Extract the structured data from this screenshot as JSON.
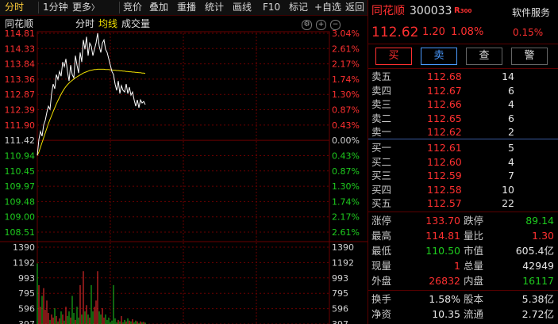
{
  "toolbar": {
    "items": [
      "分时",
      "1分钟",
      "更多",
      "竞价",
      "叠加",
      "重播",
      "统计",
      "画线",
      "F10",
      "标记",
      "+自选",
      "返回"
    ],
    "more_suffix": "〉"
  },
  "chart_header": {
    "stock_name": "同花顺",
    "mode": "分时",
    "avg_line": "均线",
    "volume": "成交量"
  },
  "chart_data": {
    "type": "line",
    "price_ticks": [
      "114.81",
      "114.33",
      "113.84",
      "113.36",
      "112.87",
      "112.39",
      "111.90",
      "111.42",
      "110.94",
      "110.45",
      "109.97",
      "109.48",
      "109.00",
      "108.51"
    ],
    "pct_ticks": [
      "3.04%",
      "2.61%",
      "2.17%",
      "1.74%",
      "1.30%",
      "0.87%",
      "0.43%",
      "0.00%",
      "0.43%",
      "0.87%",
      "1.30%",
      "1.74%",
      "2.17%",
      "2.61%"
    ],
    "volume_ticks": [
      "1390",
      "1192",
      "993",
      "795",
      "596",
      "397"
    ],
    "ylim": [
      108.51,
      114.81
    ],
    "prev_close": 111.42,
    "price": [
      110.94,
      111.45,
      111.7,
      111.55,
      111.9,
      112.05,
      112.3,
      112.5,
      112.4,
      112.9,
      113.2,
      113.05,
      113.5,
      113.35,
      113.6,
      113.45,
      113.9,
      113.75,
      114.0,
      113.6,
      113.3,
      113.8,
      113.5,
      113.4,
      114.1,
      113.8,
      113.55,
      114.2,
      113.9,
      114.6,
      114.3,
      114.7,
      114.1,
      114.5,
      114.4,
      114.1,
      114.3,
      114.5,
      114.81,
      114.4,
      114.2,
      114.5,
      114.6,
      114.3,
      114.2,
      114.0,
      113.8,
      113.6,
      113.5,
      113.2,
      113.0,
      113.3,
      112.9,
      113.15,
      113.0,
      112.95,
      113.2,
      112.9,
      113.1,
      112.85,
      112.95,
      112.7,
      112.5,
      112.7,
      112.45,
      112.7,
      112.6,
      112.65,
      112.55
    ],
    "avg": [
      110.94,
      111.05,
      111.2,
      111.35,
      111.5,
      111.65,
      111.8,
      111.95,
      112.08,
      112.2,
      112.33,
      112.45,
      112.57,
      112.68,
      112.78,
      112.88,
      112.97,
      113.05,
      113.12,
      113.18,
      113.23,
      113.28,
      113.32,
      113.36,
      113.4,
      113.43,
      113.46,
      113.49,
      113.52,
      113.55,
      113.57,
      113.59,
      113.61,
      113.63,
      113.64,
      113.65,
      113.66,
      113.66,
      113.67,
      113.67,
      113.67,
      113.67,
      113.67,
      113.66,
      113.66,
      113.66,
      113.65,
      113.65,
      113.64,
      113.64,
      113.63,
      113.63,
      113.62,
      113.62,
      113.61,
      113.61,
      113.6,
      113.6,
      113.59,
      113.59,
      113.58,
      113.58,
      113.57,
      113.57,
      113.56,
      113.56,
      113.55,
      113.55,
      113.54
    ],
    "volume_ylim": [
      397,
      1390
    ],
    "volume": [
      1180,
      900,
      620,
      760,
      860,
      580,
      700,
      540,
      450,
      520,
      480,
      600,
      500,
      430,
      470,
      560,
      520,
      440,
      620,
      500,
      560,
      480,
      760,
      540,
      450,
      620,
      480,
      900,
      520,
      1080,
      560,
      640,
      520,
      480,
      900,
      560,
      620,
      700,
      1080,
      560,
      520,
      600,
      480,
      520,
      450,
      480,
      420,
      440,
      900,
      470,
      420,
      450,
      430,
      500,
      420,
      450,
      430,
      470,
      440,
      430,
      460,
      420,
      440,
      430,
      410,
      430,
      420,
      425,
      415
    ],
    "volume_up": [
      false,
      true,
      true,
      false,
      true,
      true,
      true,
      true,
      false,
      true,
      true,
      false,
      true,
      false,
      true,
      false,
      true,
      false,
      true,
      false,
      false,
      true,
      false,
      false,
      true,
      false,
      false,
      true,
      false,
      true,
      false,
      true,
      false,
      true,
      false,
      false,
      true,
      true,
      true,
      false,
      false,
      true,
      true,
      false,
      false,
      false,
      false,
      false,
      false,
      false,
      false,
      true,
      false,
      true,
      false,
      false,
      true,
      false,
      true,
      false,
      true,
      false,
      false,
      true,
      false,
      true,
      false,
      true,
      false
    ]
  },
  "panel": {
    "name": "同花顺",
    "code": "300033",
    "tag": "R",
    "tag_sup": "300",
    "service": "软件服务",
    "price": "112.62",
    "change": "1.20",
    "change_pct": "1.08%",
    "sector_pct": "0.15%",
    "buttons": [
      "买",
      "卖",
      "查",
      "警"
    ],
    "asks": [
      {
        "label": "卖五",
        "price": "112.68",
        "vol": "14"
      },
      {
        "label": "卖四",
        "price": "112.67",
        "vol": "6"
      },
      {
        "label": "卖三",
        "price": "112.66",
        "vol": "4"
      },
      {
        "label": "卖二",
        "price": "112.65",
        "vol": "6"
      },
      {
        "label": "卖一",
        "price": "112.62",
        "vol": "2"
      }
    ],
    "bids": [
      {
        "label": "买一",
        "price": "112.61",
        "vol": "5"
      },
      {
        "label": "买二",
        "price": "112.60",
        "vol": "4"
      },
      {
        "label": "买三",
        "price": "112.59",
        "vol": "7"
      },
      {
        "label": "买四",
        "price": "112.58",
        "vol": "10"
      },
      {
        "label": "买五",
        "price": "112.57",
        "vol": "22"
      }
    ],
    "stats": [
      {
        "k1": "涨停",
        "v1": "133.70",
        "c1": "red",
        "k2": "跌停",
        "v2": "89.14",
        "c2": "green"
      },
      {
        "k1": "最高",
        "v1": "114.81",
        "c1": "red",
        "k2": "量比",
        "v2": "1.30",
        "c2": "red"
      },
      {
        "k1": "最低",
        "v1": "110.50",
        "c1": "green",
        "k2": "市值",
        "v2": "605.4亿",
        "c2": "white"
      },
      {
        "k1": "现量",
        "v1": "1",
        "c1": "red",
        "k2": "总量",
        "v2": "42949",
        "c2": "white"
      },
      {
        "k1": "外盘",
        "v1": "26832",
        "c1": "red",
        "k2": "内盘",
        "v2": "16117",
        "c2": "green"
      }
    ],
    "stats2": [
      {
        "k1": "换手",
        "v1": "1.58%",
        "k2": "股本",
        "v2": "5.38亿"
      },
      {
        "k1": "净资",
        "v1": "10.35",
        "k2": "流通",
        "v2": "2.72亿"
      }
    ]
  },
  "colors": {
    "up": "#ff3030",
    "down": "#1ecb1e",
    "avg_line": "#f0e000",
    "price_line": "#ffffff",
    "grid": "#6a0000"
  }
}
